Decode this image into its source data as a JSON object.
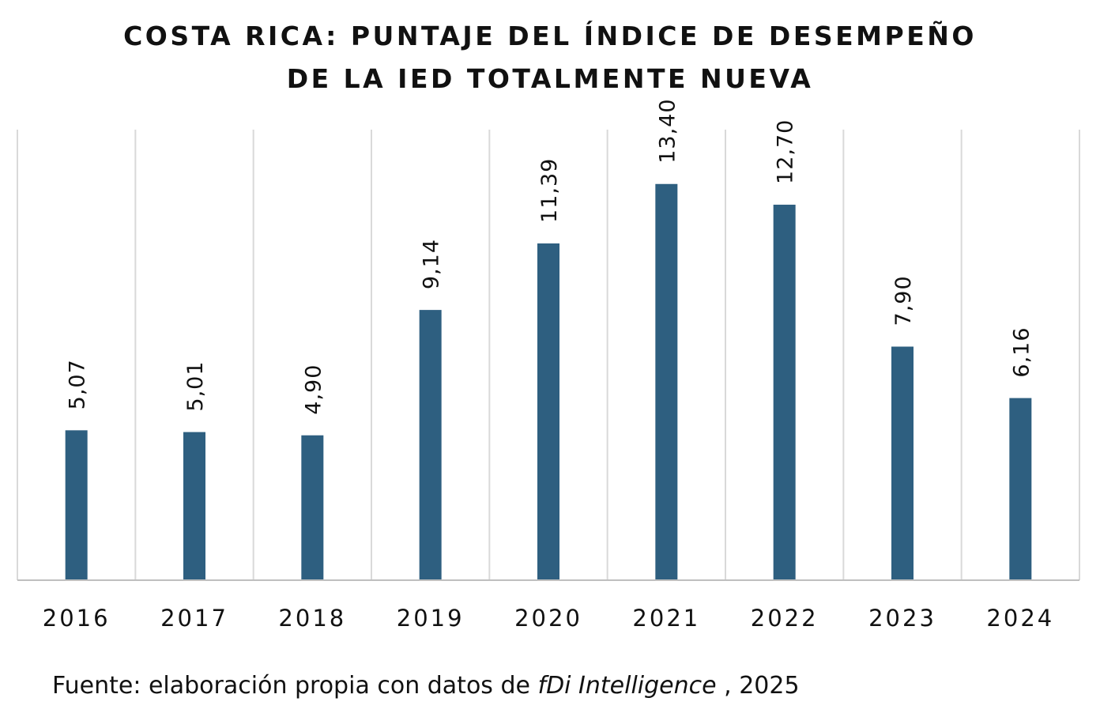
{
  "title_lines": [
    "COSTA RICA: PUNTAJE DEL ÍNDICE DE DESEMPEÑO",
    "DE LA IED TOTALMENTE NUEVA"
  ],
  "source": {
    "prefix": "Fuente: elaboración propia con datos de ",
    "italic": "fDi Intelligence",
    "suffix": " , 2025"
  },
  "colors": {
    "bar": "#2e5f80",
    "grid": "#d9d9d9",
    "axis": "#bfbfbf",
    "text": "#111111"
  },
  "chart_data": {
    "type": "bar",
    "title": "COSTA RICA: PUNTAJE DEL ÍNDICE DE DESEMPEÑO DE LA IED TOTALMENTE NUEVA",
    "categories": [
      "2016",
      "2017",
      "2018",
      "2019",
      "2020",
      "2021",
      "2022",
      "2023",
      "2024"
    ],
    "values": [
      5.07,
      5.01,
      4.9,
      9.14,
      11.39,
      13.4,
      12.7,
      7.9,
      6.16
    ],
    "data_labels": [
      "5,07",
      "5,01",
      "4,90",
      "9,14",
      "11,39",
      "13,40",
      "12,70",
      "7,90",
      "6,16"
    ],
    "xlabel": "",
    "ylabel": "",
    "ylim": [
      0,
      16
    ],
    "grid": "vertical category separators",
    "legend": "none"
  }
}
